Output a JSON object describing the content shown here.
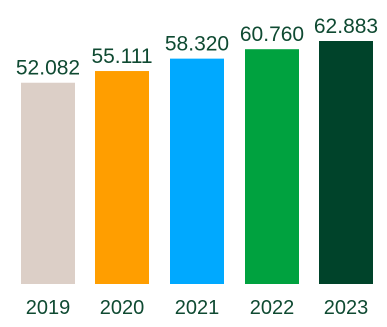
{
  "chart_data": {
    "type": "bar",
    "title": "",
    "xlabel": "",
    "ylabel": "",
    "categories": [
      "2019",
      "2020",
      "2021",
      "2022",
      "2023"
    ],
    "values": [
      52082,
      55111,
      58320,
      60760,
      62883
    ],
    "value_labels": [
      "52.082",
      "55.111",
      "58.320",
      "60.760",
      "62.883"
    ],
    "bar_colors": [
      "#dccfc7",
      "#ff9e00",
      "#00a9ff",
      "#00a23f",
      "#00432a"
    ],
    "text_color": "#0f4a32",
    "ylim": [
      0,
      62883
    ],
    "grid": false,
    "legend": "none"
  }
}
